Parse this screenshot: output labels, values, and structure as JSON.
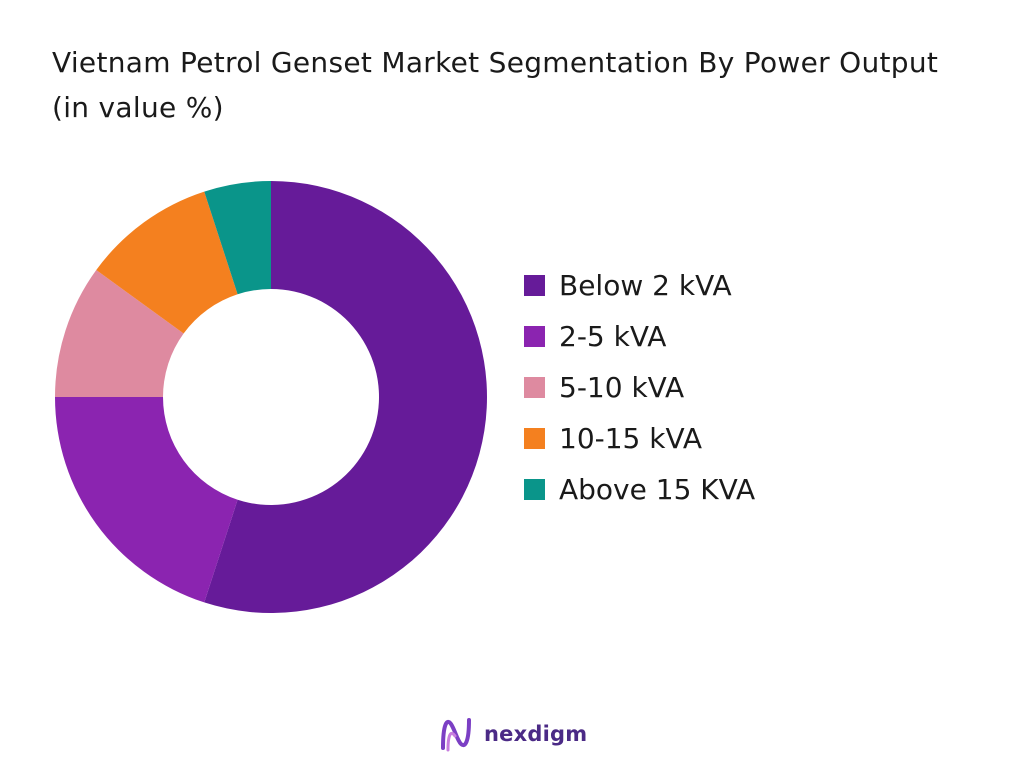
{
  "chart_data": {
    "type": "pie",
    "title": "Vietnam Petrol Genset Market Segmentation By Power Output (in value %)",
    "categories": [
      "Below 2 kVA",
      "2-5 kVA",
      "5-10 kVA",
      "10-15 kVA",
      "Above 15 KVA"
    ],
    "values": [
      55,
      20,
      10,
      10,
      5
    ],
    "colors": [
      "#661b99",
      "#8b24b0",
      "#de8aa0",
      "#f4801f",
      "#0a958a"
    ],
    "donut": true,
    "legend_position": "right"
  },
  "brand": {
    "name": "nexdigm",
    "logo_color": "#7b3fc4"
  }
}
